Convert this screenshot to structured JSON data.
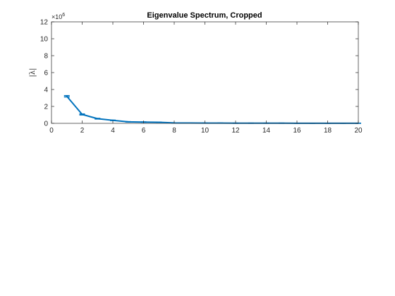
{
  "chart_data": {
    "type": "line",
    "title": "Eigenvalue Spectrum, Cropped",
    "xlabel": "",
    "ylabel": "|λ|",
    "y_exponent_label": "×10",
    "y_exponent_power": "6",
    "xlim": [
      0,
      20
    ],
    "ylim": [
      0,
      12
    ],
    "y_scale_factor": 1000000,
    "xticks": [
      0,
      2,
      4,
      6,
      8,
      10,
      12,
      14,
      16,
      18,
      20
    ],
    "yticks": [
      0,
      2,
      4,
      6,
      8,
      10,
      12
    ],
    "grid": false,
    "line_color": "#0072BD",
    "series": [
      {
        "x": [
          1,
          2,
          3,
          4,
          5,
          6,
          7,
          8,
          9,
          10,
          11,
          12,
          13,
          14,
          15,
          16,
          17,
          18,
          19,
          20
        ],
        "y": [
          3.2,
          1.05,
          0.55,
          0.35,
          0.18,
          0.15,
          0.12,
          0.05,
          0.04,
          0.03,
          0.03,
          0.02,
          0.02,
          0.02,
          0.02,
          0.01,
          0.01,
          0.01,
          0.01,
          0.01
        ],
        "error": [
          0.08,
          0.06,
          0.04,
          0.03,
          0.02,
          0.02,
          0.02,
          0.01,
          0.01,
          0.01,
          0.01,
          0.01,
          0.01,
          0.01,
          0.01,
          0.01,
          0.01,
          0.01,
          0.01,
          0.01
        ]
      }
    ]
  }
}
